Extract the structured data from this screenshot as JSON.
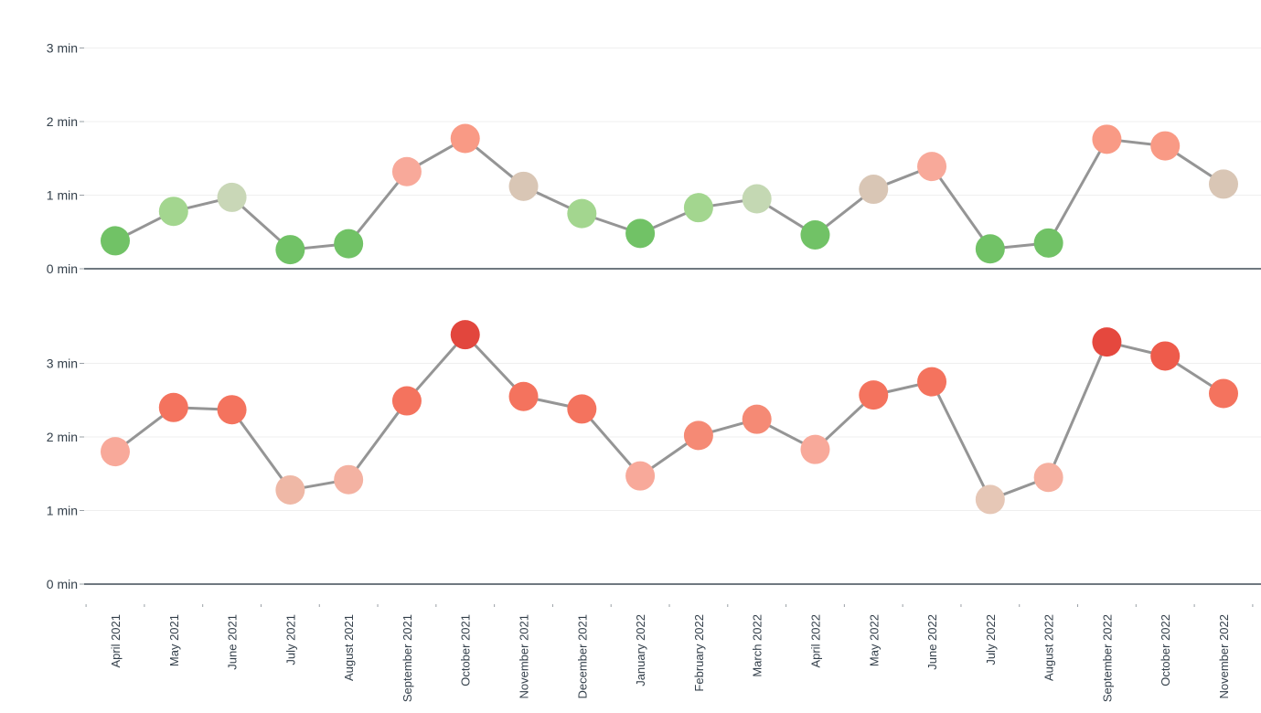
{
  "chart_data": {
    "type": "line",
    "categories": [
      "April 2021",
      "May 2021",
      "June 2021",
      "July 2021",
      "August 2021",
      "September 2021",
      "October 2021",
      "November 2021",
      "December 2021",
      "January 2022",
      "February 2022",
      "March 2022",
      "April 2022",
      "May 2022",
      "June 2022",
      "July 2022",
      "August 2022",
      "September 2022",
      "October 2022",
      "November 2022"
    ],
    "y_unit": "min",
    "panels": [
      {
        "name": "top",
        "ylim": [
          0,
          3
        ],
        "yticks": [
          0,
          1,
          2,
          3
        ],
        "ytick_labels": [
          "0 min",
          "1 min",
          "2 min",
          "3 min"
        ],
        "values": [
          0.38,
          0.78,
          0.97,
          0.26,
          0.34,
          1.32,
          1.77,
          1.12,
          0.75,
          0.48,
          0.83,
          0.95,
          0.46,
          1.08,
          1.39,
          0.27,
          0.35,
          1.76,
          1.67,
          1.15
        ],
        "marker_colors": [
          "#71c266",
          "#a3d68f",
          "#c9d7b7",
          "#71c266",
          "#71c266",
          "#f8a99a",
          "#f99a85",
          "#d9c6b5",
          "#a3d68f",
          "#71c266",
          "#a3d68f",
          "#c4d8b3",
          "#71c266",
          "#d9c6b5",
          "#f8a99a",
          "#71c266",
          "#71c266",
          "#f99a85",
          "#f99a85",
          "#d9c6b5"
        ]
      },
      {
        "name": "bottom",
        "ylim": [
          0,
          3.6
        ],
        "yticks": [
          0,
          1,
          2,
          3
        ],
        "ytick_labels": [
          "0 min",
          "1 min",
          "2 min",
          "3 min"
        ],
        "values": [
          1.8,
          2.4,
          2.37,
          1.28,
          1.42,
          2.49,
          3.39,
          2.55,
          2.38,
          1.47,
          2.02,
          2.24,
          1.83,
          2.57,
          2.75,
          1.15,
          1.45,
          3.29,
          3.1,
          2.59
        ],
        "marker_colors": [
          "#f8a99a",
          "#f4735e",
          "#f4735e",
          "#efb8a6",
          "#f4b2a2",
          "#f4735e",
          "#e2463d",
          "#f4735e",
          "#f4735e",
          "#f8a99a",
          "#f58a75",
          "#f58a75",
          "#f8a99a",
          "#f4735e",
          "#f4735e",
          "#e6c7b6",
          "#f6b0a0",
          "#e5483e",
          "#ee5b4b",
          "#f4735e"
        ]
      }
    ],
    "line_color": "#959595"
  }
}
